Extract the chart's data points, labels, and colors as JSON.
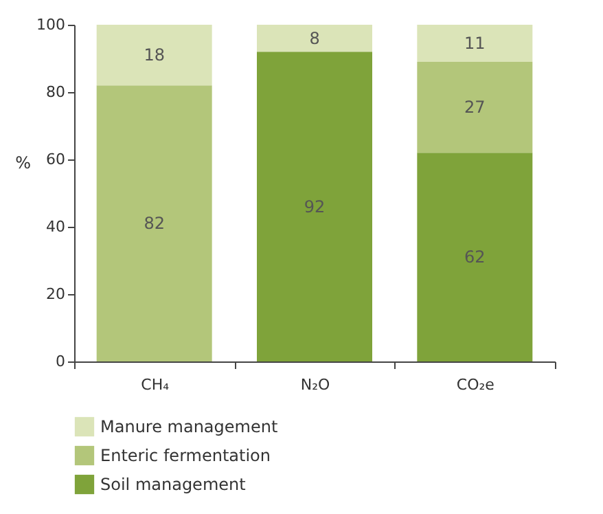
{
  "chart_data": {
    "type": "bar",
    "stacked": true,
    "ylabel": "%",
    "categories": [
      "CH₄",
      "N₂O",
      "CO₂e"
    ],
    "series": [
      {
        "name": "Soil management",
        "color": "#7fa33a",
        "values": [
          null,
          92,
          62
        ]
      },
      {
        "name": "Enteric fermentation",
        "color": "#b3c67a",
        "values": [
          82,
          null,
          27
        ]
      },
      {
        "name": "Manure management",
        "color": "#dbe4b8",
        "values": [
          18,
          8,
          11
        ]
      }
    ],
    "ylim": [
      0,
      100
    ],
    "yticks": [
      0,
      20,
      40,
      60,
      80,
      100
    ],
    "grid": false,
    "legend": "bottom",
    "data_labels": true
  }
}
